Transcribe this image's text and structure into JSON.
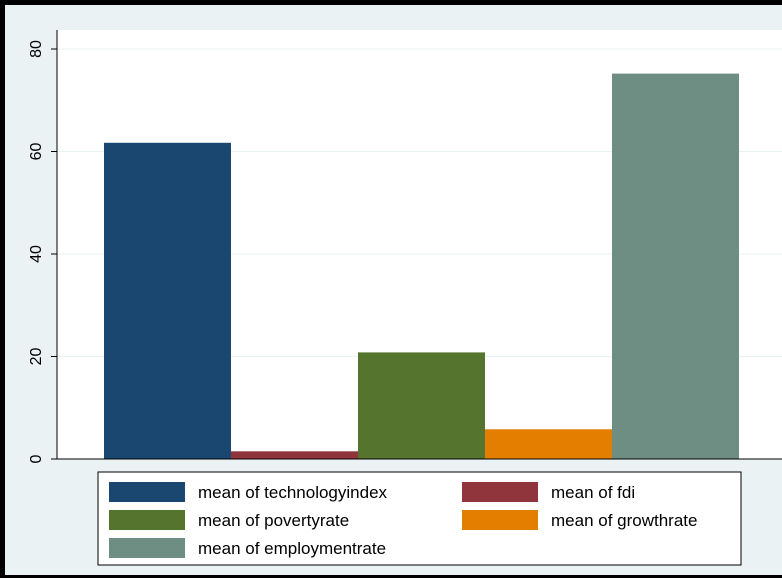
{
  "chart_data": {
    "type": "bar",
    "title": "",
    "xlabel": "",
    "ylabel": "",
    "ylim": [
      0,
      80
    ],
    "yticks": [
      "0",
      "20",
      "40",
      "60",
      "80"
    ],
    "grid": true,
    "legend_position": "bottom",
    "series": [
      {
        "name": "mean of technologyindex",
        "value": 61.7,
        "color": "#1a476f"
      },
      {
        "name": "mean of fdi",
        "value": 1.5,
        "color": "#90353b"
      },
      {
        "name": "mean of povertyrate",
        "value": 20.8,
        "color": "#55752f"
      },
      {
        "name": "mean of growthrate",
        "value": 5.8,
        "color": "#e37e00"
      },
      {
        "name": "mean of employmentrate",
        "value": 75.2,
        "color": "#6e8e84"
      }
    ]
  }
}
